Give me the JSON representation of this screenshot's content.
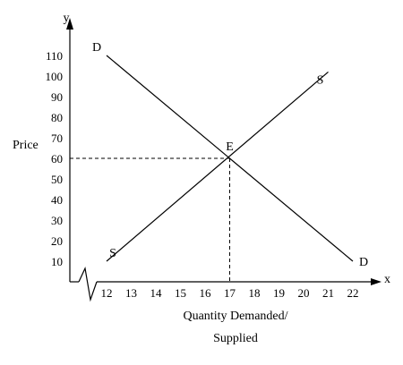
{
  "chart_data": {
    "type": "line",
    "title": "",
    "axis_letters": {
      "x": "x",
      "y": "y"
    },
    "ylabel": "Price",
    "xlabel_lines": [
      "Quantity Demanded/",
      "Supplied"
    ],
    "xlim": [
      11,
      23
    ],
    "ylim": [
      0,
      120
    ],
    "x_ticks": [
      12,
      13,
      14,
      15,
      16,
      17,
      18,
      19,
      20,
      21,
      22
    ],
    "y_ticks": [
      10,
      20,
      30,
      40,
      50,
      60,
      70,
      80,
      90,
      100,
      110
    ],
    "axis_break": "zigzag at x-axis origin",
    "series": [
      {
        "name": "D",
        "label_start": "D",
        "label_end": "D",
        "points": [
          [
            12,
            110
          ],
          [
            22,
            10
          ]
        ]
      },
      {
        "name": "S",
        "label_start": "S",
        "label_end": "S",
        "points": [
          [
            12,
            10
          ],
          [
            21,
            102
          ]
        ]
      }
    ],
    "equilibrium": {
      "label": "E",
      "x": 17,
      "y": 60
    }
  }
}
